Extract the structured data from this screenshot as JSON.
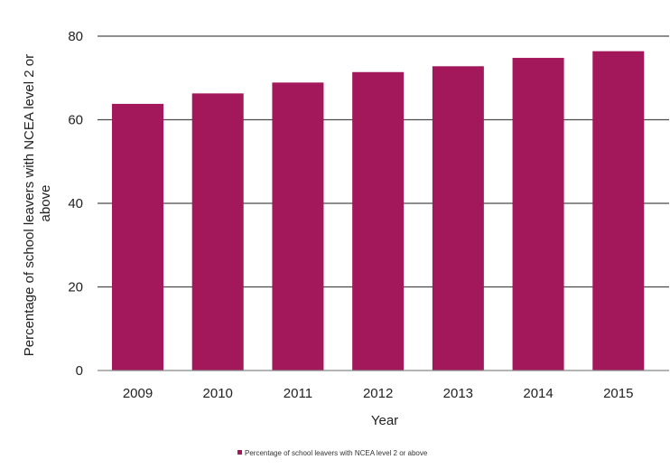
{
  "chart_data": {
    "type": "bar",
    "title": "",
    "xlabel": "Year",
    "ylabel_lines": [
      "Percentage of school leavers with NCEA level 2 or",
      "above"
    ],
    "categories": [
      "2009",
      "2010",
      "2011",
      "2012",
      "2013",
      "2014",
      "2015"
    ],
    "series": [
      {
        "name": "Percentage of school leavers with NCEA level 2 or above",
        "values": [
          63.8,
          66.3,
          68.9,
          71.4,
          72.8,
          74.8,
          76.4
        ]
      }
    ],
    "ylim": [
      0,
      80
    ],
    "yticks": [
      "0",
      "20",
      "40",
      "60",
      "80"
    ],
    "grid": true,
    "legend": "bottom",
    "colors": {
      "bar": "#A3185A",
      "grid": "#4a4a4a",
      "axis": "#888888"
    }
  }
}
